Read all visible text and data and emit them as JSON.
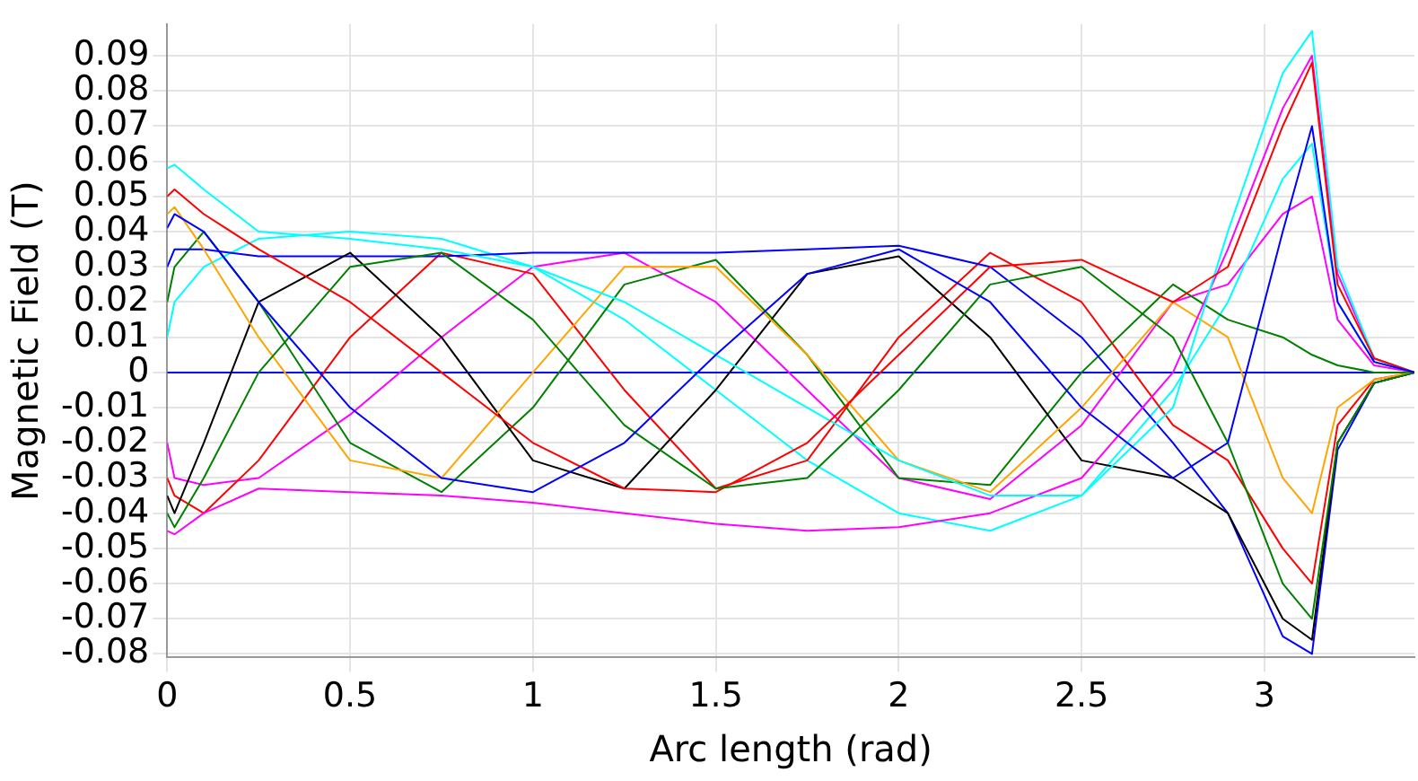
{
  "chart_data": {
    "type": "line",
    "xlabel": "Arc length (rad)",
    "ylabel": "Magnetic Field (T)",
    "x": [
      0,
      0.02,
      0.1,
      0.25,
      0.5,
      0.75,
      1,
      1.25,
      1.5,
      1.75,
      2,
      2.25,
      2.5,
      2.75,
      2.9,
      3.05,
      3.13,
      3.2,
      3.3,
      3.41
    ],
    "xlim": [
      0,
      3.41
    ],
    "xticks": [
      0,
      0.5,
      1,
      1.5,
      2,
      2.5,
      3
    ],
    "ylim": [
      -0.081,
      0.099
    ],
    "yticks": [
      -0.08,
      -0.07,
      -0.06,
      -0.05,
      -0.04,
      -0.03,
      -0.02,
      -0.01,
      0,
      0.01,
      0.02,
      0.03,
      0.04,
      0.05,
      0.06,
      0.07,
      0.08,
      0.09
    ],
    "grid": true,
    "legend": false,
    "marker": "none",
    "line_style": "solid",
    "series": [
      {
        "color": "#0000ff",
        "values": [
          0.041,
          0.045,
          0.04,
          0.02,
          -0.01,
          -0.03,
          -0.034,
          -0.02,
          0.005,
          0.028,
          0.035,
          0.02,
          -0.01,
          -0.03,
          -0.02,
          0.04,
          0.07,
          0.02,
          0.003,
          0
        ]
      },
      {
        "color": "#008000",
        "values": [
          -0.04,
          -0.044,
          -0.03,
          0,
          0.03,
          0.034,
          0.015,
          -0.015,
          -0.033,
          -0.03,
          -0.005,
          0.025,
          0.03,
          0.01,
          -0.02,
          -0.06,
          -0.07,
          -0.02,
          -0.003,
          0
        ]
      },
      {
        "color": "#ff0000",
        "values": [
          0.05,
          0.052,
          0.045,
          0.035,
          0.02,
          0,
          -0.02,
          -0.033,
          -0.034,
          -0.02,
          0.005,
          0.03,
          0.032,
          0.02,
          0.03,
          0.07,
          0.088,
          0.025,
          0.004,
          0
        ]
      },
      {
        "color": "#00ffff",
        "values": [
          0.058,
          0.059,
          0.052,
          0.04,
          0.038,
          0.035,
          0.03,
          0.02,
          0.005,
          -0.01,
          -0.025,
          -0.035,
          -0.035,
          -0.01,
          0.04,
          0.085,
          0.097,
          0.03,
          0.004,
          0
        ]
      },
      {
        "color": "#ff00ff",
        "values": [
          -0.045,
          -0.046,
          -0.04,
          -0.033,
          -0.034,
          -0.035,
          -0.037,
          -0.04,
          -0.043,
          -0.045,
          -0.044,
          -0.04,
          -0.03,
          0,
          0.035,
          0.075,
          0.09,
          0.028,
          0.004,
          0
        ]
      },
      {
        "color": "#ffa500",
        "values": [
          0.045,
          0.047,
          0.035,
          0.01,
          -0.025,
          -0.03,
          0,
          0.03,
          0.03,
          0.005,
          -0.025,
          -0.034,
          -0.01,
          0.02,
          0.01,
          -0.03,
          -0.04,
          -0.01,
          -0.002,
          0
        ]
      },
      {
        "color": "#000000",
        "values": [
          -0.035,
          -0.04,
          -0.02,
          0.02,
          0.034,
          0.01,
          -0.025,
          -0.033,
          -0.005,
          0.028,
          0.033,
          0.01,
          -0.025,
          -0.03,
          -0.04,
          -0.07,
          -0.076,
          -0.02,
          -0.003,
          0
        ]
      },
      {
        "color": "#0000ff",
        "values": [
          0.03,
          0.035,
          0.035,
          0.033,
          0.033,
          0.033,
          0.034,
          0.034,
          0.034,
          0.035,
          0.036,
          0.03,
          0.01,
          -0.02,
          -0.04,
          -0.075,
          -0.08,
          -0.022,
          -0.003,
          0
        ]
      },
      {
        "color": "#008000",
        "values": [
          0.02,
          0.03,
          0.04,
          0.02,
          -0.02,
          -0.034,
          -0.01,
          0.025,
          0.032,
          0.005,
          -0.03,
          -0.032,
          0,
          0.025,
          0.015,
          0.01,
          0.005,
          0.002,
          0,
          0
        ]
      },
      {
        "color": "#ff0000",
        "values": [
          -0.03,
          -0.035,
          -0.04,
          -0.025,
          0.01,
          0.034,
          0.028,
          -0.005,
          -0.033,
          -0.025,
          0.01,
          0.034,
          0.02,
          -0.015,
          -0.025,
          -0.05,
          -0.06,
          -0.015,
          -0.002,
          0
        ]
      },
      {
        "color": "#00ffff",
        "values": [
          0.01,
          0.02,
          0.03,
          0.038,
          0.04,
          0.038,
          0.03,
          0.015,
          -0.005,
          -0.025,
          -0.04,
          -0.045,
          -0.035,
          -0.005,
          0.02,
          0.055,
          0.065,
          0.02,
          0.003,
          0
        ]
      },
      {
        "color": "#ff00ff",
        "values": [
          -0.02,
          -0.03,
          -0.032,
          -0.03,
          -0.012,
          0.01,
          0.03,
          0.034,
          0.02,
          -0.005,
          -0.03,
          -0.036,
          -0.015,
          0.02,
          0.025,
          0.045,
          0.05,
          0.015,
          0.002,
          0
        ]
      },
      {
        "color": "#0000ff",
        "values": [
          0,
          0,
          0,
          0,
          0,
          0,
          0,
          0,
          0,
          0,
          0,
          0,
          0,
          0,
          0,
          0,
          0,
          0,
          0,
          0
        ]
      }
    ]
  }
}
